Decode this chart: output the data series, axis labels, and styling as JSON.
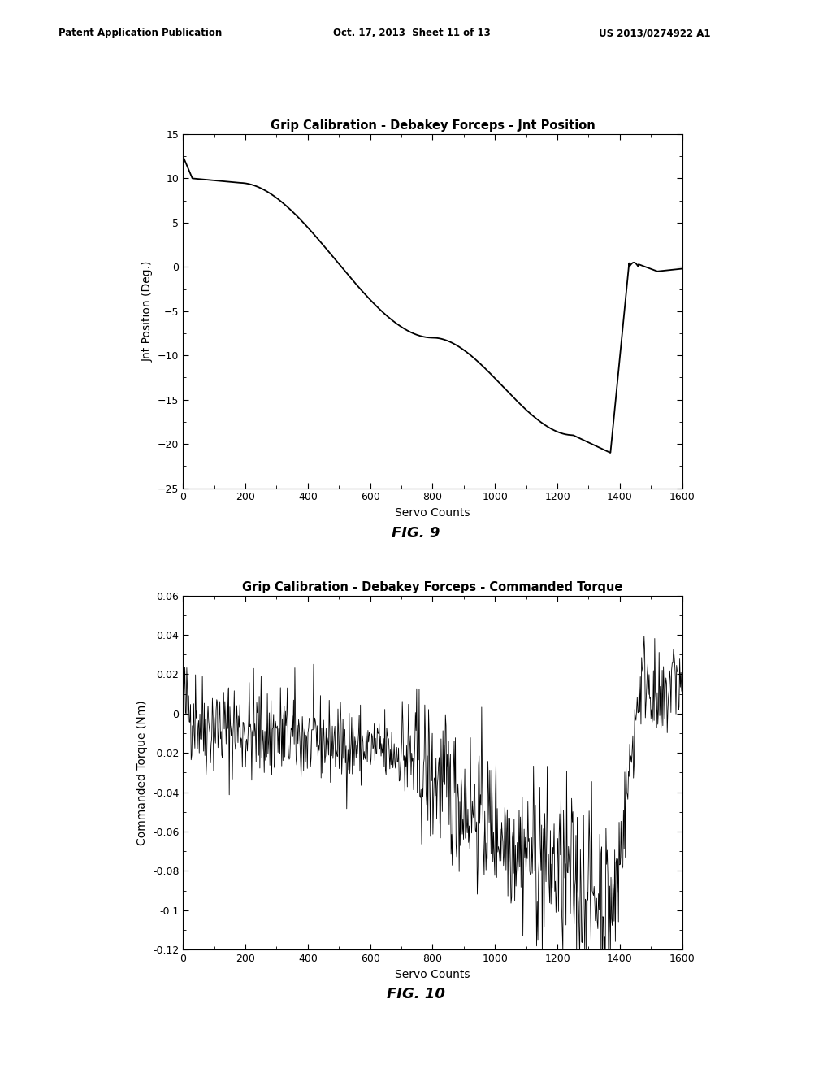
{
  "fig_width": 10.24,
  "fig_height": 13.2,
  "bg_color": "#ffffff",
  "header_left": "Patent Application Publication",
  "header_mid": "Oct. 17, 2013  Sheet 11 of 13",
  "header_right": "US 2013/0274922 A1",
  "plot1": {
    "title": "Grip Calibration - Debakey Forceps - Jnt Position",
    "xlabel": "Servo Counts",
    "ylabel": "Jnt Position (Deg.)",
    "xlim": [
      0,
      1600
    ],
    "ylim": [
      -25,
      15
    ],
    "xticks": [
      0,
      200,
      400,
      600,
      800,
      1000,
      1200,
      1400,
      1600
    ],
    "yticks": [
      -25,
      -20,
      -15,
      -10,
      -5,
      0,
      5,
      10,
      15
    ],
    "fig_label": "FIG. 9"
  },
  "plot2": {
    "title": "Grip Calibration - Debakey Forceps - Commanded Torque",
    "xlabel": "Servo Counts",
    "ylabel": "Commanded Torque (Nm)",
    "xlim": [
      0,
      1600
    ],
    "ylim": [
      -0.12,
      0.06
    ],
    "xticks": [
      0,
      200,
      400,
      600,
      800,
      1000,
      1200,
      1400,
      1600
    ],
    "yticks": [
      -0.12,
      -0.1,
      -0.08,
      -0.06,
      -0.04,
      -0.02,
      0,
      0.02,
      0.04,
      0.06
    ],
    "fig_label": "FIG. 10"
  }
}
